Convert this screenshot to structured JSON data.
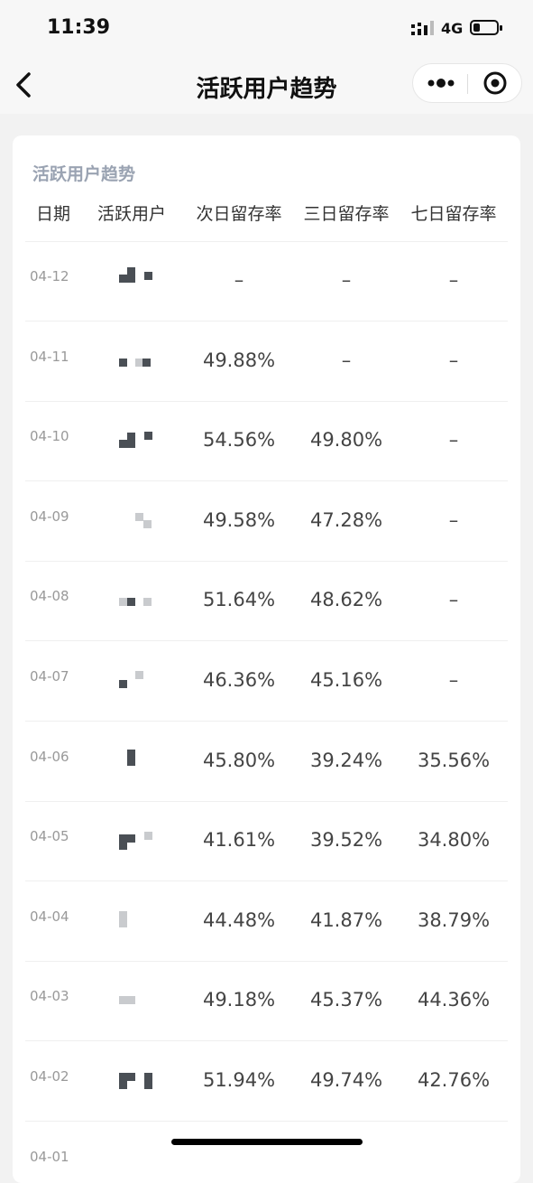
{
  "status_bar": {
    "time": "11:39",
    "network": "4G",
    "battery_level": 0.25
  },
  "nav": {
    "title": "活跃用户趋势",
    "back_icon": "chevron-left-icon",
    "more_icon": "more-dots-icon",
    "close_icon": "target-close-icon"
  },
  "card": {
    "title": "活跃用户趋势",
    "headers": [
      "日期",
      "活跃用户",
      "次日留存率",
      "三日留存率",
      "七日留存率"
    ]
  },
  "rows": [
    {
      "date": "04-12",
      "next_day": "–",
      "three_day": "–",
      "seven_day": "–"
    },
    {
      "date": "04-11",
      "next_day": "49.88%",
      "three_day": "–",
      "seven_day": "–"
    },
    {
      "date": "04-10",
      "next_day": "54.56%",
      "three_day": "49.80%",
      "seven_day": "–"
    },
    {
      "date": "04-09",
      "next_day": "49.58%",
      "three_day": "47.28%",
      "seven_day": "–"
    },
    {
      "date": "04-08",
      "next_day": "51.64%",
      "three_day": "48.62%",
      "seven_day": "–"
    },
    {
      "date": "04-07",
      "next_day": "46.36%",
      "three_day": "45.16%",
      "seven_day": "–"
    },
    {
      "date": "04-06",
      "next_day": "45.80%",
      "three_day": "39.24%",
      "seven_day": "35.56%"
    },
    {
      "date": "04-05",
      "next_day": "41.61%",
      "three_day": "39.52%",
      "seven_day": "34.80%"
    },
    {
      "date": "04-04",
      "next_day": "44.48%",
      "three_day": "41.87%",
      "seven_day": "38.79%"
    },
    {
      "date": "04-03",
      "next_day": "49.18%",
      "three_day": "45.37%",
      "seven_day": "44.36%"
    },
    {
      "date": "04-02",
      "next_day": "51.94%",
      "three_day": "49.74%",
      "seven_day": "42.76%"
    },
    {
      "date": "04-01",
      "next_day": "",
      "three_day": "",
      "seven_day": ""
    }
  ],
  "colors": {
    "page_bg": "#f2f2f2",
    "card_bg": "#ffffff",
    "card_title": "#9aa3b2",
    "mosaic_dark": "#4a4f55",
    "mosaic_light": "#c9cbce"
  }
}
